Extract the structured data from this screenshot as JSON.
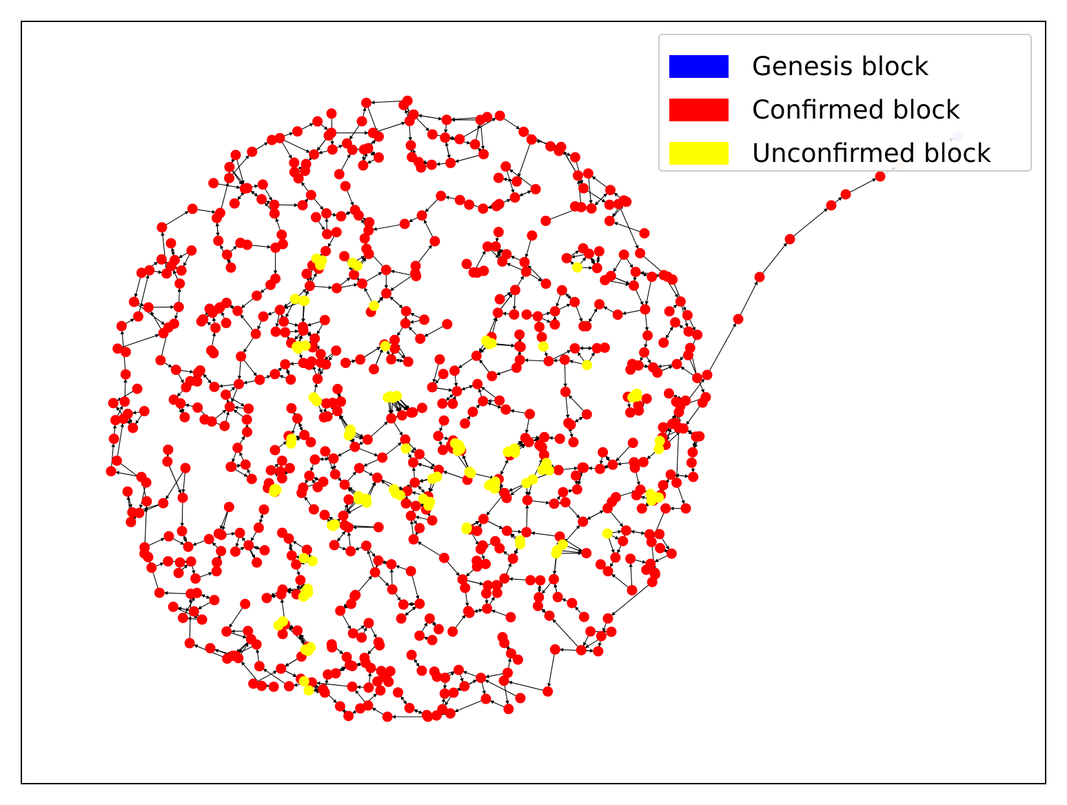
{
  "legend": [
    {
      "label": "Genesis block",
      "color": "#0000ff"
    },
    {
      "label": "Confirmed block",
      "color": "#ff0000"
    },
    {
      "label": "Unconfirmed block",
      "color": "#ffff00"
    }
  ],
  "colors": {
    "genesis": "#0000ff",
    "confirmed": "#ff0000",
    "unconfirmed": "#ffff00",
    "edge": "#000000"
  }
}
